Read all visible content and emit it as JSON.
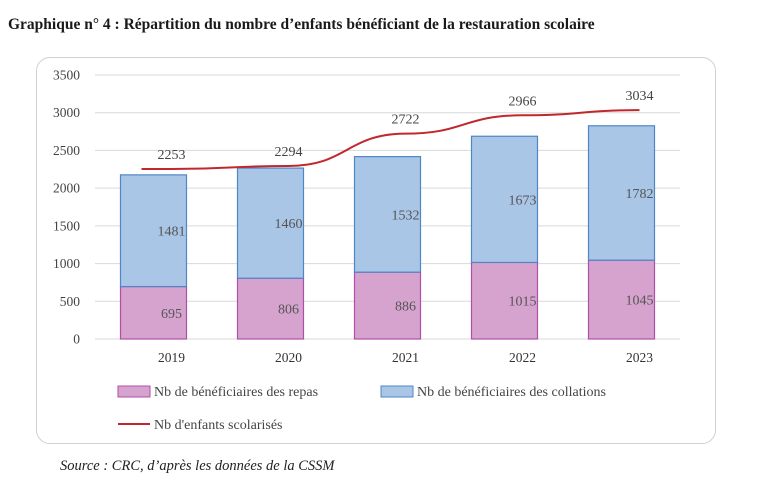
{
  "title": "Graphique n° 4 :  Répartition du nombre d’enfants bénéficiant de la restauration scolaire",
  "source": "Source : CRC, d’après les données de la CSSM",
  "chart_data": {
    "type": "bar",
    "stacked": true,
    "categories": [
      "2019",
      "2020",
      "2021",
      "2022",
      "2023"
    ],
    "series": [
      {
        "name": "Nb de bénéficiaires des repas",
        "kind": "bar",
        "values": [
          695,
          806,
          886,
          1015,
          1045
        ],
        "color": "#d6a3cf",
        "edge": "#b04fa8"
      },
      {
        "name": "Nb de bénéficiaires des collations",
        "kind": "bar",
        "values": [
          1481,
          1460,
          1532,
          1673,
          1782
        ],
        "color": "#a9c6e6",
        "edge": "#4f86c6"
      },
      {
        "name": "Nb d'enfants scolarisés",
        "kind": "line",
        "values": [
          2253,
          2294,
          2722,
          2966,
          3034
        ],
        "color": "#c0282d"
      }
    ],
    "yticks": [
      0,
      500,
      1000,
      1500,
      2000,
      2500,
      3000,
      3500
    ],
    "ylim": [
      0,
      3500
    ],
    "grid": true,
    "legend": "bottom"
  }
}
